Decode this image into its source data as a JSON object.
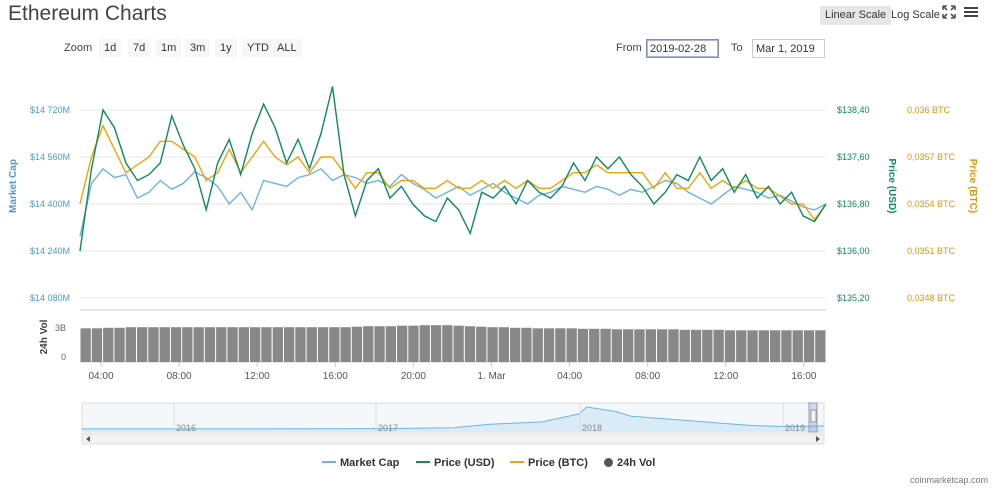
{
  "page": {
    "title": "Ethereum Charts",
    "credit": "coinmarketcap.com"
  },
  "toolbar": {
    "linear_scale": "Linear Scale",
    "log_scale": "Log Scale",
    "fullscreen_icon": "expand-icon",
    "menu_icon": "hamburger-menu-icon",
    "zoom_label": "Zoom",
    "zoom_options": [
      "1d",
      "7d",
      "1m",
      "3m",
      "1y",
      "YTD",
      "ALL"
    ],
    "from_label": "From",
    "from_value": "2019-02-28",
    "to_label": "To",
    "to_value": "Mar 1, 2019"
  },
  "colors": {
    "market_cap": "#6cb4e0",
    "price_usd": "#0f8a5f",
    "price_btc": "#f0a30a",
    "volume": "#888888"
  },
  "chart_data": {
    "type": "line",
    "y_axes": {
      "market_cap": {
        "title": "Market Cap",
        "ticks": [
          "$14 720M",
          "$14 560M",
          "$14 400M",
          "$14 240M",
          "$14 080M"
        ],
        "range": [
          14080,
          14720
        ]
      },
      "price_usd": {
        "title": "Price (USD)",
        "ticks": [
          "$138,40",
          "$137,60",
          "$136,80",
          "$136,00",
          "$135,20"
        ],
        "range": [
          135.2,
          138.4
        ]
      },
      "price_btc": {
        "title": "Price (BTC)",
        "ticks": [
          "0,036 BTC",
          "0,0357 BTC",
          "0,0354 BTC",
          "0,0351 BTC",
          "0,0348 BTC"
        ],
        "range": [
          0.0348,
          0.036
        ]
      },
      "volume": {
        "title": "24h Vol",
        "ticks": [
          "3B",
          "0"
        ]
      }
    },
    "x_ticks": [
      "04:00",
      "08:00",
      "12:00",
      "16:00",
      "20:00",
      "1. Mar",
      "04:00",
      "08:00",
      "12:00",
      "16:00"
    ],
    "series": [
      {
        "name": "Market Cap",
        "values": [
          14290,
          14470,
          14520,
          14490,
          14500,
          14420,
          14440,
          14480,
          14450,
          14470,
          14510,
          14490,
          14460,
          14400,
          14440,
          14380,
          14480,
          14470,
          14460,
          14490,
          14500,
          14520,
          14480,
          14500,
          14490,
          14470,
          14480,
          14460,
          14500,
          14470,
          14450,
          14420,
          14440,
          14460,
          14430,
          14450,
          14470,
          14440,
          14420,
          14400,
          14430,
          14440,
          14460,
          14450,
          14440,
          14460,
          14450,
          14430,
          14450,
          14440,
          14460,
          14480,
          14470,
          14440,
          14420,
          14400,
          14430,
          14460,
          14450,
          14440,
          14420,
          14430,
          14410,
          14390,
          14380,
          14400
        ]
      },
      {
        "name": "Price (USD)",
        "values": [
          136.0,
          137.4,
          138.4,
          138.1,
          137.5,
          137.2,
          137.3,
          137.5,
          138.3,
          137.8,
          137.4,
          136.7,
          137.5,
          137.9,
          137.3,
          138.0,
          138.5,
          138.1,
          137.5,
          137.9,
          137.4,
          138.0,
          138.8,
          137.3,
          136.6,
          137.2,
          137.4,
          136.9,
          137.1,
          136.8,
          136.6,
          136.5,
          136.9,
          136.7,
          136.3,
          137.0,
          136.9,
          137.1,
          136.8,
          137.2,
          137.0,
          136.9,
          137.1,
          137.5,
          137.2,
          137.6,
          137.4,
          137.6,
          137.3,
          137.1,
          136.8,
          137.0,
          137.3,
          137.2,
          137.6,
          137.2,
          137.4,
          137.0,
          137.3,
          136.9,
          137.1,
          136.8,
          137.0,
          136.6,
          136.5,
          136.8
        ]
      },
      {
        "name": "Price (BTC)",
        "values": [
          0.0354,
          0.0357,
          0.0359,
          0.03575,
          0.0356,
          0.03565,
          0.0357,
          0.0358,
          0.0358,
          0.03575,
          0.0357,
          0.03555,
          0.0356,
          0.03575,
          0.0356,
          0.0357,
          0.0358,
          0.0357,
          0.03565,
          0.0357,
          0.0356,
          0.0357,
          0.0357,
          0.0356,
          0.0355,
          0.0356,
          0.0356,
          0.0355,
          0.03555,
          0.03555,
          0.0355,
          0.0355,
          0.03555,
          0.0355,
          0.0355,
          0.03555,
          0.0355,
          0.03555,
          0.0355,
          0.03555,
          0.0355,
          0.0355,
          0.03555,
          0.0356,
          0.0356,
          0.03565,
          0.0356,
          0.0356,
          0.0356,
          0.0356,
          0.0355,
          0.0356,
          0.0355,
          0.0355,
          0.0356,
          0.0355,
          0.03555,
          0.0355,
          0.03555,
          0.0355,
          0.0355,
          0.03545,
          0.0354,
          0.0354,
          0.0353,
          0.0354
        ]
      },
      {
        "name": "24h Vol",
        "values": [
          3.3,
          3.3,
          3.35,
          3.35,
          3.4,
          3.4,
          3.4,
          3.4,
          3.4,
          3.4,
          3.4,
          3.4,
          3.4,
          3.4,
          3.4,
          3.4,
          3.4,
          3.4,
          3.4,
          3.4,
          3.4,
          3.4,
          3.4,
          3.4,
          3.45,
          3.5,
          3.5,
          3.5,
          3.55,
          3.55,
          3.6,
          3.6,
          3.6,
          3.55,
          3.5,
          3.45,
          3.4,
          3.4,
          3.35,
          3.35,
          3.3,
          3.3,
          3.3,
          3.3,
          3.25,
          3.25,
          3.25,
          3.2,
          3.2,
          3.2,
          3.2,
          3.2,
          3.2,
          3.15,
          3.15,
          3.15,
          3.15,
          3.1,
          3.1,
          3.1,
          3.1,
          3.1,
          3.1,
          3.1,
          3.1,
          3.1
        ]
      }
    ],
    "navigator": {
      "years": [
        "2016",
        "2017",
        "2018",
        "2019"
      ]
    },
    "legend": [
      "Market Cap",
      "Price (USD)",
      "Price (BTC)",
      "24h Vol"
    ],
    "legend_placement": "bottom-center",
    "grid": true
  }
}
